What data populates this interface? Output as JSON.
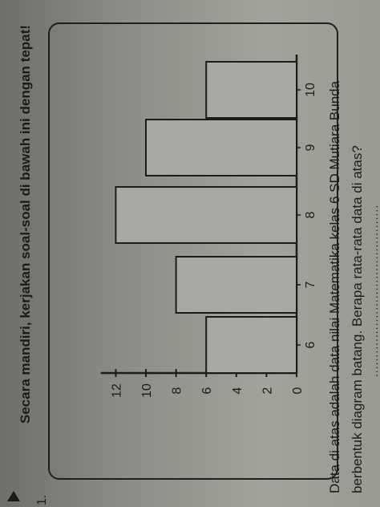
{
  "header": {
    "instruction": "Secara mandiri, kerjakan soal-soal di bawah ini dengan tepat!"
  },
  "question": {
    "number": "1.",
    "line1": "Data di atas adalah data nilai Matematika kelas 6 SD Mutiara Bunda",
    "line2": "berbentuk diagram batang. Berapa rata-rata data di atas?",
    "answer_line": "............................................"
  },
  "colors": {
    "bar_fill": "#a9a9a3",
    "axis": "#1b1b1b"
  },
  "chart_data": {
    "type": "bar",
    "orientation": "rotated-photo",
    "categories": [
      "6",
      "7",
      "8",
      "9",
      "10"
    ],
    "values": [
      6,
      8,
      12,
      10,
      6
    ],
    "yticks": [
      0,
      2,
      4,
      6,
      8,
      10,
      12
    ],
    "ylim": [
      0,
      13
    ],
    "title": "",
    "xlabel": "",
    "ylabel": "",
    "grid": false
  }
}
